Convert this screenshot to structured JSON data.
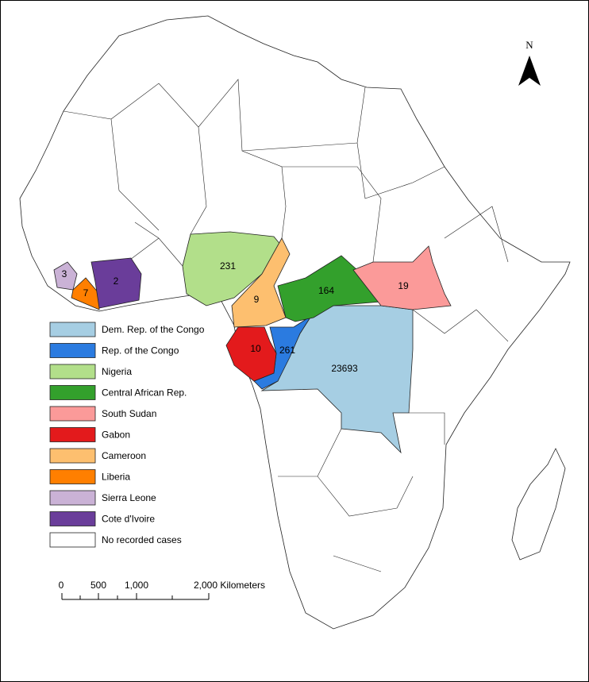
{
  "regions": [
    {
      "name": "Dem. Rep. of the Congo",
      "color": "#a6cee3",
      "cases": 23693
    },
    {
      "name": "Rep. of the Congo",
      "color": "#2b7be0",
      "cases": 261
    },
    {
      "name": "Nigeria",
      "color": "#b2df8a",
      "cases": 231
    },
    {
      "name": "Central African Rep.",
      "color": "#33a02c",
      "cases": 164
    },
    {
      "name": "South Sudan",
      "color": "#fb9a99",
      "cases": 19
    },
    {
      "name": "Gabon",
      "color": "#e31a1c",
      "cases": 10
    },
    {
      "name": "Cameroon",
      "color": "#fdbf6f",
      "cases": 9
    },
    {
      "name": "Liberia",
      "color": "#ff7f00",
      "cases": 7
    },
    {
      "name": "Sierra Leone",
      "color": "#cab2d6",
      "cases": 3
    },
    {
      "name": "Cote d'Ivoire",
      "color": "#6a3d9a",
      "cases": 2
    },
    {
      "name": "No recorded cases",
      "color": "#ffffff"
    }
  ],
  "scale_bar": {
    "labels": [
      "0",
      "500",
      "1,000",
      "2,000 Kilometers"
    ]
  },
  "north_label": "N"
}
